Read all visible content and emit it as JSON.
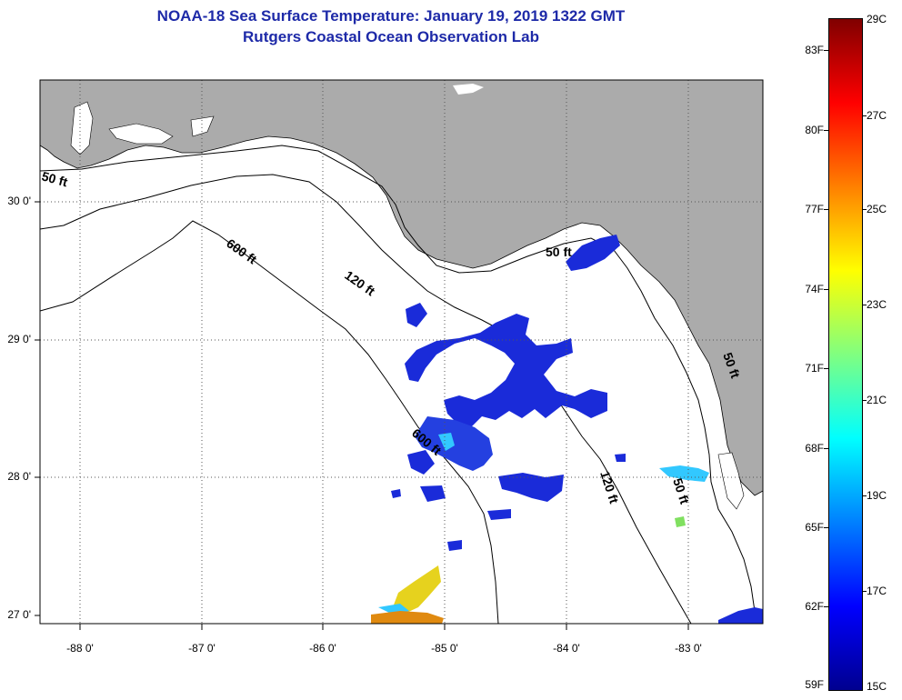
{
  "title": "NOAA-18 Sea Surface Temperature:  January 19, 2019 1322 GMT",
  "subtitle": "Rutgers Coastal Ocean Observation Lab",
  "lat_labels": [
    "30 0'",
    "29 0'",
    "28 0'",
    "27 0'"
  ],
  "lon_labels": [
    "-88 0'",
    "-87 0'",
    "-86 0'",
    "-85 0'",
    "-84 0'",
    "-83 0'"
  ],
  "contour_labels": [
    "50 ft",
    "600 ft",
    "120 ft",
    "50 ft",
    "600 ft",
    "120 ft",
    "50 ft",
    "50 ft"
  ],
  "colorbar": {
    "fahrenheit": [
      "83F",
      "80F",
      "77F",
      "74F",
      "71F",
      "68F",
      "65F",
      "62F",
      "59F"
    ],
    "celsius": [
      "29C",
      "27C",
      "25C",
      "23C",
      "21C",
      "19C",
      "17C",
      "15C"
    ]
  },
  "colors": {
    "land": "#ababab",
    "ocean": "#ffffff",
    "title": "#1e2aa8",
    "sst_deep_blue": "#1a2bd9",
    "sst_cyan": "#32c8ff",
    "sst_yellow": "#e6d21e",
    "sst_orange": "#e08a10"
  }
}
